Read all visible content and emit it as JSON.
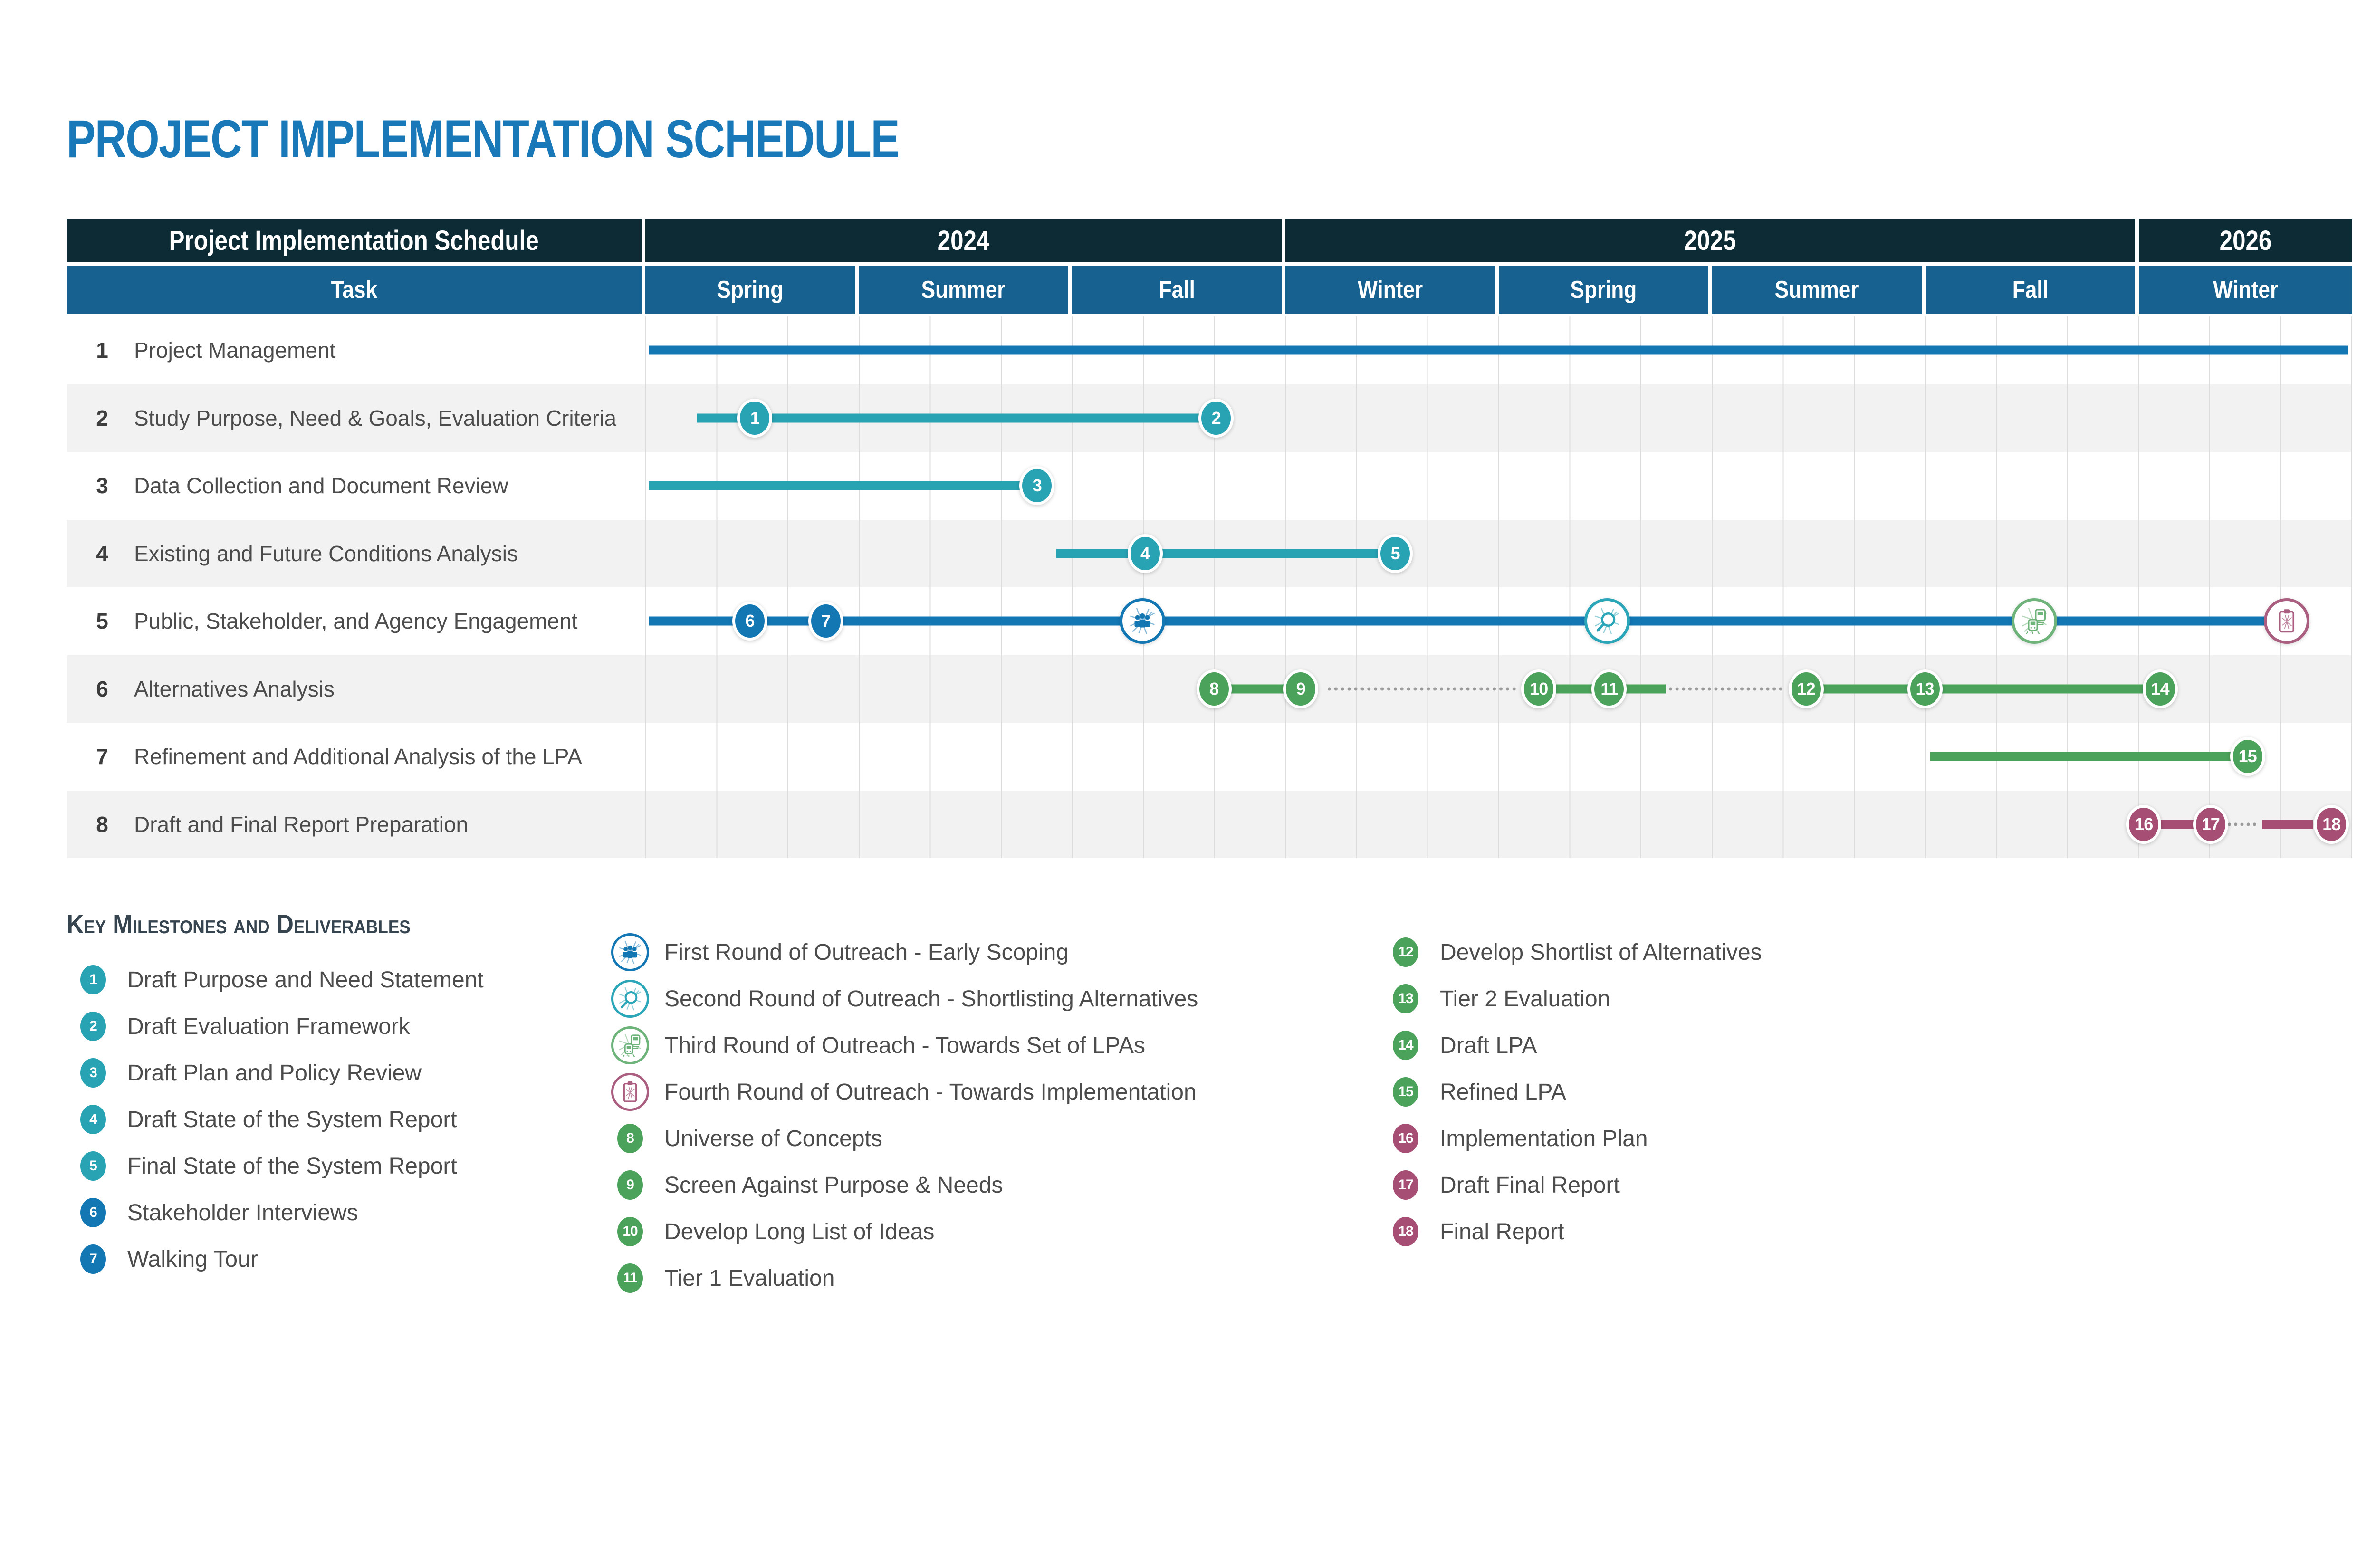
{
  "page_title": "PROJECT IMPLEMENTATION SCHEDULE",
  "colors": {
    "title_blue": "#1878b8",
    "header_dark": "#0d2b35",
    "header_blue": "#16618f",
    "blue": "#1377b4",
    "teal": "#27a3b4",
    "green": "#4ba25a",
    "maroon": "#a64e74",
    "icon_blue": "#1377b4",
    "icon_teal": "#2aa6b8",
    "icon_green": "#6db37a",
    "icon_maroon": "#aa5f80",
    "stripe_gray": "#f2f2f2",
    "grid_gray": "#dcdcdc",
    "dotted_gray": "#9b9b9b",
    "text_gray": "#4c4c4c",
    "legend_heading": "#35444f"
  },
  "table_header": {
    "title": "Project Implementation Schedule",
    "task_column_label": "Task",
    "years": [
      {
        "label": "2024",
        "season_span": 3
      },
      {
        "label": "2025",
        "season_span": 4
      },
      {
        "label": "2026",
        "season_span": 1
      }
    ],
    "season_columns": [
      "Spring",
      "Summer",
      "Fall",
      "Winter",
      "Spring",
      "Summer",
      "Fall",
      "Winter"
    ]
  },
  "chart_data": {
    "type": "bar",
    "variant": "gantt-schedule",
    "title": "Project Implementation Schedule",
    "timeline": {
      "start": "Spring 2024",
      "end": "Winter 2026",
      "total_months": 24,
      "months_per_season": 3,
      "seasons": [
        "Spring 2024",
        "Summer 2024",
        "Fall 2024",
        "Winter 2025",
        "Spring 2025",
        "Summer 2025",
        "Fall 2025",
        "Winter 2026"
      ]
    },
    "tasks": [
      {
        "num": "1",
        "name": "Project Management",
        "color": "blue",
        "bars": [
          {
            "style": "solid",
            "start_m": 0.05,
            "end_m": 23.95
          }
        ],
        "milestones": [],
        "icons": []
      },
      {
        "num": "2",
        "name": "Study Purpose, Need & Goals, Evaluation Criteria",
        "color": "teal",
        "bars": [
          {
            "style": "solid",
            "start_m": 0.72,
            "end_m": 8.03
          }
        ],
        "milestones": [
          {
            "n": "1",
            "m": 1.54
          },
          {
            "n": "2",
            "m": 8.03
          }
        ],
        "icons": []
      },
      {
        "num": "3",
        "name": "Data Collection and Document Review",
        "color": "teal",
        "bars": [
          {
            "style": "solid",
            "start_m": 0.05,
            "end_m": 5.51
          }
        ],
        "milestones": [
          {
            "n": "3",
            "m": 5.51
          }
        ],
        "icons": []
      },
      {
        "num": "4",
        "name": "Existing and Future Conditions Analysis",
        "color": "teal",
        "bars": [
          {
            "style": "solid",
            "start_m": 5.78,
            "end_m": 10.55
          }
        ],
        "milestones": [
          {
            "n": "4",
            "m": 7.03
          },
          {
            "n": "5",
            "m": 10.55
          }
        ],
        "icons": []
      },
      {
        "num": "5",
        "name": "Public, Stakeholder, and Agency Engagement",
        "color": "blue",
        "bars": [
          {
            "style": "solid",
            "start_m": 0.05,
            "end_m": 22.78
          }
        ],
        "milestones": [
          {
            "n": "6",
            "m": 1.47
          },
          {
            "n": "7",
            "m": 2.54
          }
        ],
        "icons": [
          {
            "name": "outreach-1",
            "m": 6.99
          },
          {
            "name": "outreach-2",
            "m": 13.53
          },
          {
            "name": "outreach-3",
            "m": 19.54
          },
          {
            "name": "outreach-4",
            "m": 23.09
          }
        ]
      },
      {
        "num": "6",
        "name": "Alternatives Analysis",
        "color": "green",
        "bars": [
          {
            "style": "solid",
            "start_m": 8.0,
            "end_m": 9.22
          },
          {
            "style": "dotted",
            "start_m": 9.6,
            "end_m": 12.25
          },
          {
            "style": "solid",
            "start_m": 12.57,
            "end_m": 14.35
          },
          {
            "style": "dotted",
            "start_m": 14.4,
            "end_m": 16.0
          },
          {
            "style": "solid",
            "start_m": 16.33,
            "end_m": 21.31
          }
        ],
        "milestones": [
          {
            "n": "8",
            "m": 8.0
          },
          {
            "n": "9",
            "m": 9.22
          },
          {
            "n": "10",
            "m": 12.57
          },
          {
            "n": "11",
            "m": 13.56
          },
          {
            "n": "12",
            "m": 16.33
          },
          {
            "n": "13",
            "m": 18.0
          },
          {
            "n": "14",
            "m": 21.31
          }
        ],
        "icons": []
      },
      {
        "num": "7",
        "name": "Refinement and Additional Analysis of the LPA",
        "color": "green",
        "bars": [
          {
            "style": "solid",
            "start_m": 18.08,
            "end_m": 22.54
          }
        ],
        "milestones": [
          {
            "n": "15",
            "m": 22.54
          }
        ],
        "icons": []
      },
      {
        "num": "8",
        "name": "Draft and Final Report Preparation",
        "color": "maroon",
        "bars": [
          {
            "style": "solid",
            "start_m": 21.08,
            "end_m": 22.02
          },
          {
            "style": "dotted",
            "start_m": 22.26,
            "end_m": 22.66
          },
          {
            "style": "solid",
            "start_m": 22.75,
            "end_m": 23.46
          }
        ],
        "milestones": [
          {
            "n": "16",
            "m": 21.08
          },
          {
            "n": "17",
            "m": 22.02
          },
          {
            "n": "18",
            "m": 23.72
          }
        ],
        "icons": []
      }
    ]
  },
  "legend": {
    "title": "Key Milestones and Deliverables",
    "columns": [
      [
        {
          "badge": "1",
          "color": "teal",
          "label": "Draft Purpose and Need Statement"
        },
        {
          "badge": "2",
          "color": "teal",
          "label": "Draft Evaluation Framework"
        },
        {
          "badge": "3",
          "color": "teal",
          "label": "Draft Plan and Policy Review"
        },
        {
          "badge": "4",
          "color": "teal",
          "label": "Draft State of the System Report"
        },
        {
          "badge": "5",
          "color": "teal",
          "label": "Final State of the System Report"
        },
        {
          "badge": "6",
          "color": "blue",
          "label": "Stakeholder Interviews"
        },
        {
          "badge": "7",
          "color": "blue",
          "label": "Walking Tour"
        }
      ],
      [
        {
          "icon": "outreach-1",
          "color": "icon_blue",
          "label": "First Round of Outreach - Early Scoping"
        },
        {
          "icon": "outreach-2",
          "color": "icon_teal",
          "label": "Second Round of Outreach - Shortlisting Alternatives"
        },
        {
          "icon": "outreach-3",
          "color": "icon_green",
          "label": "Third Round of Outreach - Towards Set of LPAs"
        },
        {
          "icon": "outreach-4",
          "color": "icon_maroon",
          "label": "Fourth Round of Outreach - Towards Implementation"
        },
        {
          "badge": "8",
          "color": "green",
          "label": "Universe of Concepts"
        },
        {
          "badge": "9",
          "color": "green",
          "label": "Screen Against Purpose & Needs"
        },
        {
          "badge": "10",
          "color": "green",
          "label": "Develop Long List of Ideas"
        },
        {
          "badge": "11",
          "color": "green",
          "label": "Tier 1 Evaluation"
        }
      ],
      [
        {
          "badge": "12",
          "color": "green",
          "label": "Develop Shortlist of Alternatives"
        },
        {
          "badge": "13",
          "color": "green",
          "label": "Tier 2 Evaluation"
        },
        {
          "badge": "14",
          "color": "green",
          "label": "Draft LPA"
        },
        {
          "badge": "15",
          "color": "green",
          "label": "Refined LPA"
        },
        {
          "badge": "16",
          "color": "maroon",
          "label": "Implementation Plan"
        },
        {
          "badge": "17",
          "color": "maroon",
          "label": "Draft Final Report"
        },
        {
          "badge": "18",
          "color": "maroon",
          "label": "Final Report"
        }
      ]
    ]
  }
}
